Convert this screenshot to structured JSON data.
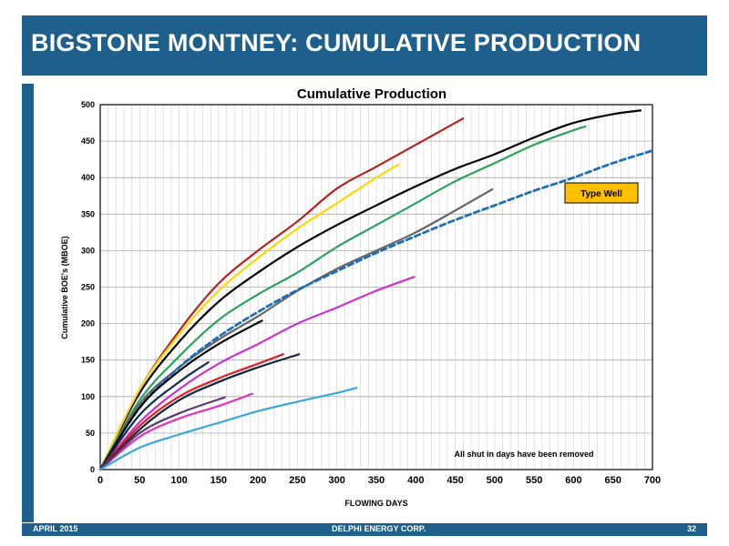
{
  "slide": {
    "title": "BIGSTONE MONTNEY:  CUMULATIVE PRODUCTION",
    "footer_left": "APRIL 2015",
    "footer_center": "DELPHI ENERGY CORP.",
    "footer_right": "32"
  },
  "chart_data": {
    "type": "line",
    "title": "Cumulative Production",
    "xlabel": "FLOWING DAYS",
    "ylabel": "Cumulative BOE's (MBOE)",
    "xlim": [
      0,
      700
    ],
    "ylim": [
      0,
      500
    ],
    "xticks": [
      0,
      50,
      100,
      150,
      200,
      250,
      300,
      350,
      400,
      450,
      500,
      550,
      600,
      650,
      700
    ],
    "yticks": [
      0,
      50,
      100,
      150,
      200,
      250,
      300,
      350,
      400,
      450,
      500
    ],
    "grid": true,
    "legend_box": "Type Well",
    "annotation": "All shut in days have been removed",
    "series": [
      {
        "color": "#b22222",
        "dashed": false,
        "x": [
          0,
          50,
          100,
          150,
          200,
          250,
          300,
          350,
          400,
          460
        ],
        "y": [
          0,
          110,
          190,
          255,
          300,
          340,
          385,
          415,
          445,
          481
        ]
      },
      {
        "color": "#000000",
        "dashed": false,
        "x": [
          0,
          50,
          100,
          150,
          200,
          250,
          300,
          350,
          400,
          450,
          500,
          550,
          600,
          650,
          685
        ],
        "y": [
          0,
          105,
          175,
          230,
          270,
          305,
          335,
          362,
          388,
          412,
          432,
          455,
          475,
          487,
          492
        ]
      },
      {
        "color": "#ffd700",
        "dashed": false,
        "x": [
          0,
          50,
          100,
          150,
          200,
          250,
          300,
          350,
          378
        ],
        "y": [
          0,
          110,
          185,
          245,
          290,
          330,
          365,
          400,
          418
        ]
      },
      {
        "color": "#2ca25f",
        "dashed": false,
        "x": [
          0,
          50,
          100,
          150,
          200,
          250,
          300,
          350,
          400,
          450,
          500,
          550,
          600,
          615
        ],
        "y": [
          0,
          95,
          155,
          205,
          240,
          270,
          305,
          335,
          365,
          395,
          420,
          445,
          465,
          470
        ]
      },
      {
        "color": "#666666",
        "dashed": false,
        "x": [
          0,
          50,
          100,
          150,
          200,
          250,
          300,
          350,
          400,
          450,
          497
        ],
        "y": [
          0,
          90,
          140,
          178,
          210,
          245,
          275,
          300,
          325,
          355,
          384
        ]
      },
      {
        "color": "#1f6fb2",
        "dashed": true,
        "x": [
          0,
          50,
          100,
          150,
          200,
          250,
          300,
          350,
          400,
          450,
          500,
          550,
          600,
          650,
          700
        ],
        "y": [
          0,
          85,
          140,
          182,
          216,
          246,
          272,
          297,
          320,
          342,
          362,
          382,
          400,
          420,
          437
        ]
      },
      {
        "color": "#000000",
        "dashed": false,
        "x": [
          0,
          50,
          100,
          150,
          205
        ],
        "y": [
          0,
          85,
          135,
          172,
          204
        ]
      },
      {
        "color": "#cc33cc",
        "dashed": false,
        "x": [
          0,
          50,
          100,
          150,
          200,
          250,
          300,
          350,
          398
        ],
        "y": [
          0,
          65,
          110,
          145,
          172,
          200,
          222,
          245,
          264
        ]
      },
      {
        "color": "#152c4e",
        "dashed": false,
        "x": [
          0,
          50,
          100,
          137
        ],
        "y": [
          0,
          75,
          120,
          147
        ]
      },
      {
        "color": "#e51c23",
        "dashed": false,
        "x": [
          0,
          50,
          100,
          150,
          200,
          232
        ],
        "y": [
          0,
          60,
          100,
          125,
          145,
          158
        ]
      },
      {
        "color": "#13233d",
        "dashed": false,
        "x": [
          0,
          50,
          100,
          150,
          200,
          252
        ],
        "y": [
          0,
          55,
          95,
          120,
          140,
          158
        ]
      },
      {
        "color": "#e033b8",
        "dashed": false,
        "x": [
          0,
          50,
          100,
          150,
          193
        ],
        "y": [
          0,
          45,
          70,
          87,
          104
        ]
      },
      {
        "color": "#5a3a6e",
        "dashed": false,
        "x": [
          0,
          50,
          100,
          158
        ],
        "y": [
          0,
          50,
          77,
          99
        ]
      },
      {
        "color": "#37a9d8",
        "dashed": false,
        "x": [
          0,
          50,
          100,
          150,
          200,
          250,
          300,
          325
        ],
        "y": [
          0,
          30,
          48,
          64,
          80,
          93,
          105,
          112
        ]
      }
    ]
  }
}
